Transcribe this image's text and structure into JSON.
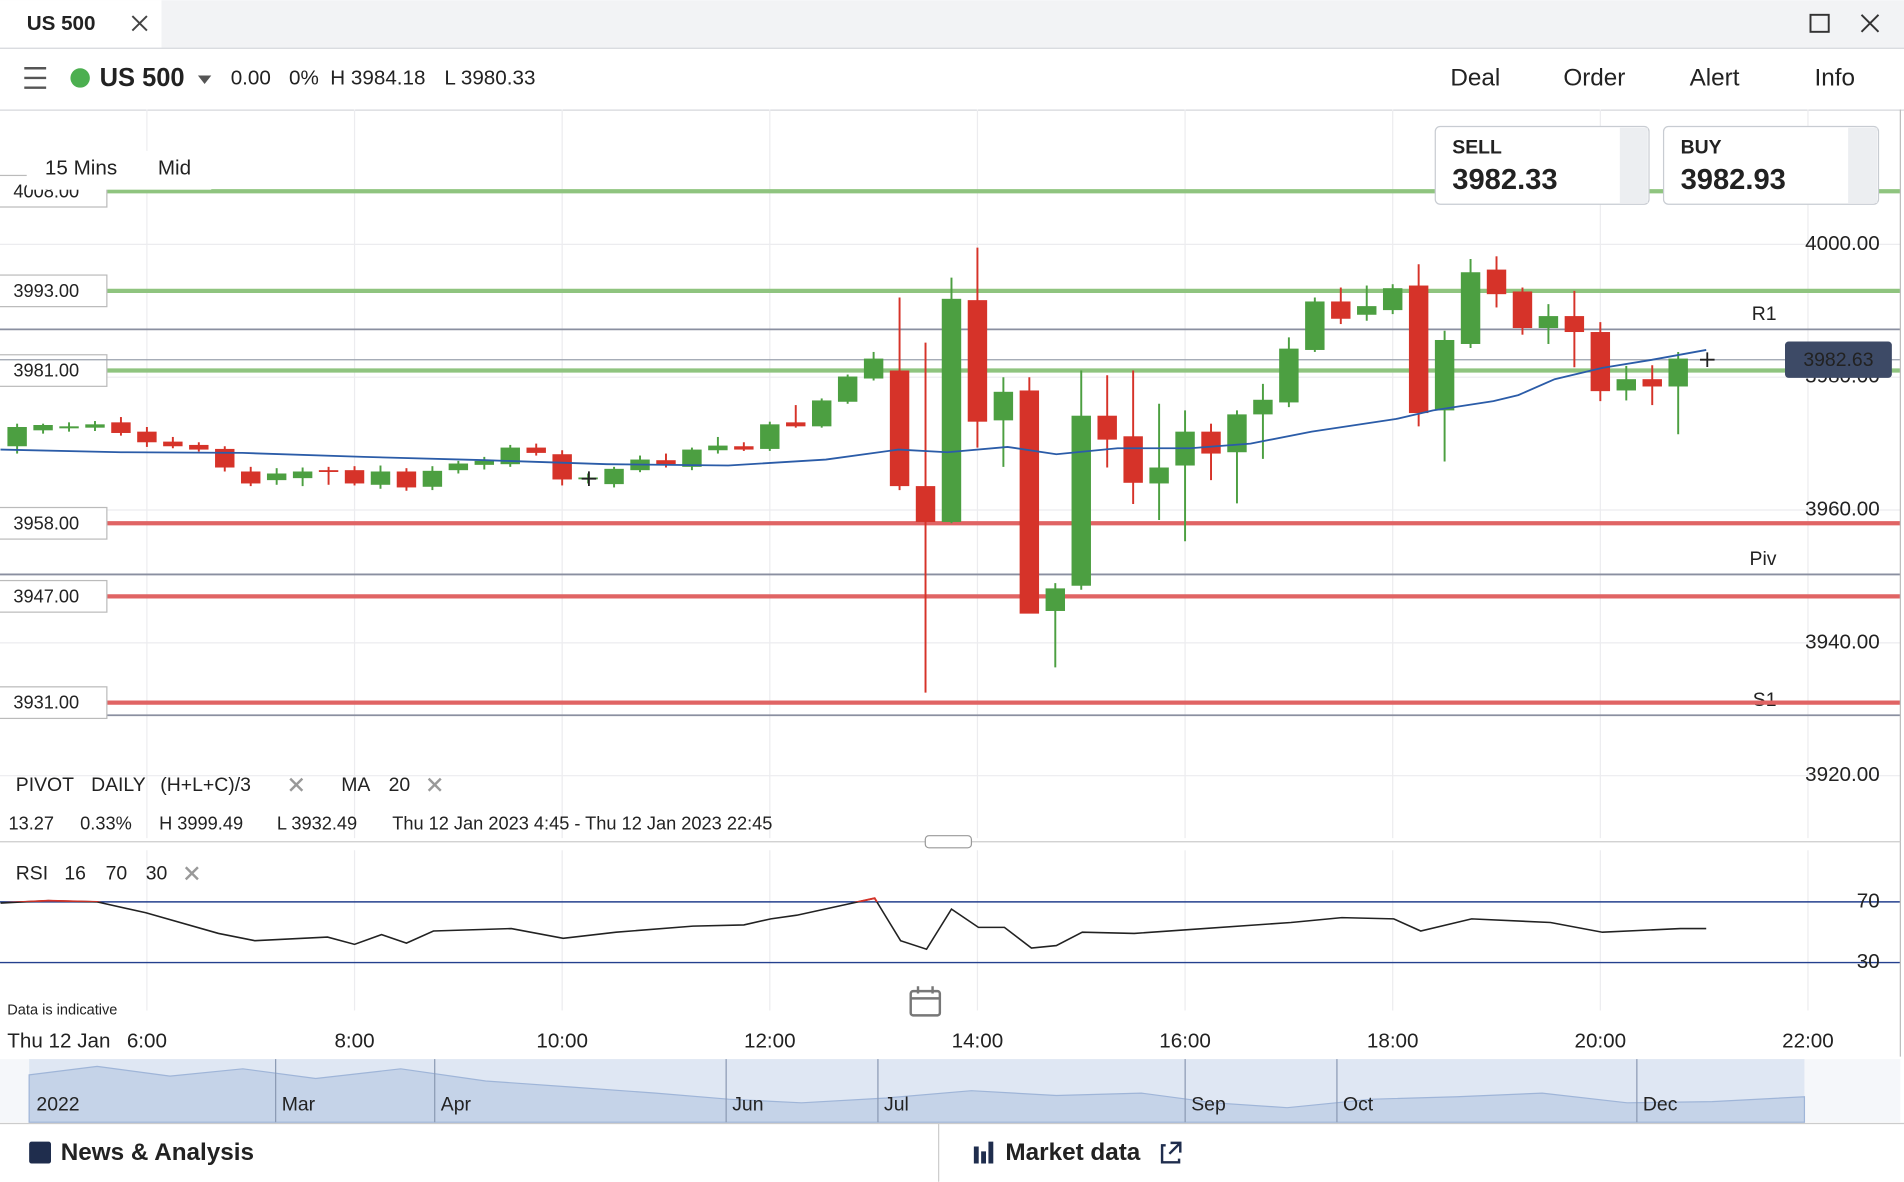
{
  "window": {
    "tab": "US 500"
  },
  "header": {
    "instrument": "US 500",
    "change": "0.00",
    "change_pct": "0%",
    "high": "H 3984.18",
    "low": "L 3980.33",
    "menu": [
      "Deal",
      "Order",
      "Alert",
      "Info"
    ]
  },
  "quote": {
    "sell_label": "SELL",
    "sell": "3982.33",
    "buy_label": "BUY",
    "buy": "3982.93"
  },
  "toolbar": [
    "15 Mins",
    "Mid"
  ],
  "indicators": {
    "pivot": "PIVOT",
    "pivot_period": "DAILY",
    "pivot_formula": "(H+L+C)/3",
    "ma": "MA",
    "ma_period": "20",
    "rsi": "RSI",
    "rsi_params": [
      "16",
      "70",
      "30"
    ]
  },
  "stats": {
    "change": "13.27",
    "change_pct": "0.33%",
    "high": "H 3999.49",
    "low": "L 3932.49",
    "range": "Thu 12 Jan 2023 4:45 - Thu 12 Jan 2023 22:45"
  },
  "disclaimer": "Data is indicative",
  "date_label": "Thu 12 Jan",
  "navigator": [
    "2022",
    "Mar",
    "Apr",
    "Jun",
    "Jul",
    "Sep",
    "Oct",
    "Dec"
  ],
  "footer": [
    "News & Analysis",
    "Market data"
  ],
  "chart_data": [
    {
      "type": "candlestick",
      "up_color": "#4c9f41",
      "down_color": "#d63329",
      "grid": true,
      "xlim": [
        4.585,
        22.89
      ],
      "ylim": [
        3910.6,
        4020.3
      ],
      "xticks": [
        {
          "value": 6,
          "label": "6:00"
        },
        {
          "value": 8,
          "label": "8:00"
        },
        {
          "value": 10,
          "label": "10:00"
        },
        {
          "value": 12,
          "label": "12:00"
        },
        {
          "value": 14,
          "label": "14:00"
        },
        {
          "value": 16,
          "label": "16:00"
        },
        {
          "value": 18,
          "label": "18:00"
        },
        {
          "value": 20,
          "label": "20:00"
        },
        {
          "value": 22,
          "label": "22:00"
        }
      ],
      "yticks": [
        {
          "value": 4000,
          "label": "4000.00"
        },
        {
          "value": 3980,
          "label": "3980.00"
        },
        {
          "value": 3960,
          "label": "3960.00"
        },
        {
          "value": 3940,
          "label": "3940.00"
        },
        {
          "value": 3920,
          "label": "3920.00"
        }
      ],
      "x": [
        4.75,
        5,
        5.25,
        5.5,
        5.75,
        6,
        6.25,
        6.5,
        6.75,
        7,
        7.25,
        7.5,
        7.75,
        8,
        8.25,
        8.5,
        8.75,
        9,
        9.25,
        9.5,
        9.75,
        10,
        10.25,
        10.5,
        10.75,
        11,
        11.25,
        11.5,
        11.75,
        12,
        12.25,
        12.5,
        12.75,
        13,
        13.25,
        13.5,
        13.75,
        14,
        14.25,
        14.5,
        14.75,
        15,
        15.25,
        15.5,
        15.75,
        16,
        16.25,
        16.5,
        16.75,
        17,
        17.25,
        17.5,
        17.75,
        18,
        18.25,
        18.5,
        18.75,
        19,
        19.25,
        19.5,
        19.75,
        20,
        20.25,
        20.5,
        20.75
      ],
      "open": [
        3969.6,
        3972,
        3972.3,
        3972.4,
        3973.2,
        3971.8,
        3970.3,
        3969.8,
        3969.2,
        3965.8,
        3964.5,
        3964.8,
        3966,
        3966,
        3963.8,
        3965.8,
        3963.5,
        3966,
        3966.8,
        3966.9,
        3969.4,
        3968.4,
        3964.8,
        3963.9,
        3966,
        3967.5,
        3966.5,
        3969,
        3969.6,
        3969.2,
        3973.2,
        3972.6,
        3976.3,
        3979.8,
        3981,
        3963.6,
        3958.2,
        3991.6,
        3973.5,
        3978,
        3944.8,
        3948.6,
        3974.2,
        3971.1,
        3964,
        3966.7,
        3971.8,
        3968.7,
        3974.4,
        3976.2,
        3984.1,
        3991.4,
        3989.4,
        3990.1,
        3993.8,
        3975,
        3985,
        3996.2,
        3992.9,
        3987.4,
        3989.2,
        3986.8,
        3978,
        3979.7,
        3978.6
      ],
      "high": [
        3973,
        3973,
        3973.2,
        3973.4,
        3974,
        3972.5,
        3971,
        3970.2,
        3969.6,
        3966.5,
        3966.3,
        3966.4,
        3966.5,
        3966.6,
        3966.7,
        3966.3,
        3966.6,
        3967.4,
        3968,
        3969.8,
        3970,
        3969,
        3965.5,
        3966.5,
        3968.2,
        3968.5,
        3969.4,
        3971,
        3970.2,
        3973.3,
        3975.8,
        3976.8,
        3980.4,
        3983.8,
        3992,
        3985.2,
        3995,
        3999.5,
        3980,
        3980,
        3949,
        3981,
        3980.3,
        3981,
        3976,
        3975,
        3973,
        3975,
        3979,
        3986,
        3992,
        3993.5,
        3993.8,
        3994,
        3997,
        3987,
        3997.8,
        3998.2,
        3993.5,
        3991,
        3993,
        3988.3,
        3981.7,
        3981.8,
        3983.8
      ],
      "low": [
        3968.5,
        3971.5,
        3971.8,
        3971.9,
        3971.2,
        3969.5,
        3969.3,
        3968.8,
        3965.8,
        3963.6,
        3963.8,
        3963.6,
        3963.8,
        3963.7,
        3963.2,
        3962.9,
        3963,
        3965.5,
        3966.1,
        3966.5,
        3968.2,
        3963.7,
        3964,
        3963.4,
        3965.7,
        3966.4,
        3966,
        3968.5,
        3968.9,
        3968.9,
        3972.4,
        3972.4,
        3976,
        3979.5,
        3963,
        3932.5,
        3958,
        3969.4,
        3966.5,
        3944.5,
        3936.3,
        3948,
        3966.4,
        3960.9,
        3958.5,
        3955.3,
        3964.5,
        3961,
        3967.7,
        3975.5,
        3983.8,
        3988,
        3988.5,
        3989.5,
        3972.6,
        3967.3,
        3984.4,
        3990.5,
        3986.4,
        3985,
        3981.5,
        3976.4,
        3976.5,
        3975.8,
        3971.4
      ],
      "close": [
        3972.5,
        3972.8,
        3972.6,
        3972.9,
        3971.6,
        3970.2,
        3969.6,
        3969.1,
        3966.4,
        3964,
        3965.5,
        3965.8,
        3965.8,
        3964,
        3965.8,
        3963.4,
        3965.9,
        3967,
        3967.4,
        3969.4,
        3968.6,
        3964.6,
        3964.9,
        3966.2,
        3967.6,
        3966.9,
        3969.1,
        3969.7,
        3969.1,
        3972.9,
        3972.6,
        3976.5,
        3980.1,
        3982.8,
        3963.6,
        3958.2,
        3991.8,
        3973.3,
        3977.8,
        3944.4,
        3948.2,
        3974.2,
        3970.6,
        3964.1,
        3966.4,
        3971.8,
        3968.5,
        3974.4,
        3976.6,
        3984.3,
        3991.4,
        3988.8,
        3990.7,
        3993.4,
        3974.6,
        3985.6,
        3995.8,
        3992.5,
        3987.4,
        3989.2,
        3986.8,
        3977.9,
        3979.7,
        3978.6,
        3982.8
      ],
      "ma_color": "#2b5ca8",
      "ma_x": [
        4.59,
        5.75,
        6.92,
        8.09,
        9.26,
        10.43,
        11.6,
        12.54,
        13.24,
        13.71,
        14.29,
        14.76,
        15.35,
        16.05,
        16.63,
        17.22,
        18.03,
        18.39,
        18.97,
        19.21,
        19.56,
        20.02,
        20.49,
        21.02
      ],
      "ma_values": [
        3969.1,
        3968.7,
        3968.6,
        3968,
        3967.5,
        3966.9,
        3966.7,
        3967.6,
        3969.1,
        3968.7,
        3969.5,
        3968.4,
        3969.3,
        3969.3,
        3970,
        3971.8,
        3973.7,
        3975,
        3976.4,
        3977.3,
        3979.7,
        3981.4,
        3982.6,
        3984.1
      ],
      "levels": [
        {
          "value": 4008,
          "label": "4008.00",
          "color": "#8fc47f"
        },
        {
          "value": 3993,
          "label": "3993.00",
          "color": "#8fc47f"
        },
        {
          "value": 3981,
          "label": "3981.00",
          "color": "#8fc47f"
        },
        {
          "value": 3958,
          "label": "3958.00",
          "color": "#e06464"
        },
        {
          "value": 3947,
          "label": "3947.00",
          "color": "#e06464"
        },
        {
          "value": 3931,
          "label": "3931.00",
          "color": "#e06464"
        }
      ],
      "pivots": [
        {
          "name": "R1",
          "value": 3987.2
        },
        {
          "name": "Piv",
          "value": 3950.3
        },
        {
          "name": "S1",
          "value": 3929.1
        }
      ],
      "last_price": 3982.63
    },
    {
      "type": "line",
      "color": "#222222",
      "overbought_color": "#d63329",
      "xlim": [
        4.585,
        22.89
      ],
      "ylim": [
        0,
        100
      ],
      "yticks": [
        70,
        30
      ],
      "x": [
        4.59,
        5.05,
        5.52,
        5.99,
        6.69,
        7.04,
        7.74,
        8.0,
        8.26,
        8.5,
        8.76,
        9.51,
        10.01,
        10.52,
        11.26,
        11.75,
        12.01,
        12.26,
        13.01,
        13.26,
        13.51,
        13.75,
        14.01,
        14.26,
        14.52,
        14.76,
        15.01,
        15.51,
        16.01,
        17.02,
        17.51,
        18.01,
        18.27,
        18.76,
        19.52,
        20.02,
        20.77,
        21.02
      ],
      "values": [
        69.2,
        70.8,
        70,
        62.8,
        49.2,
        44.4,
        46.8,
        42,
        48.4,
        42.8,
        50.8,
        52.4,
        46,
        50,
        54,
        54.8,
        58.8,
        61.2,
        72.4,
        44.4,
        38.8,
        65.2,
        53.2,
        53.2,
        39.6,
        41.2,
        50,
        49.2,
        51.6,
        56.4,
        59.6,
        58.8,
        50.8,
        58.8,
        56.4,
        50,
        52.4,
        52.4
      ]
    }
  ]
}
